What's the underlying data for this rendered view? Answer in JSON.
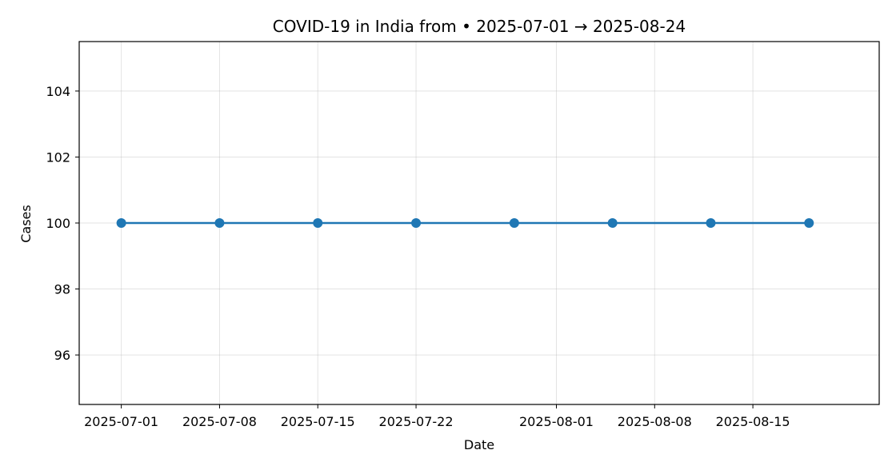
{
  "chart_data": {
    "type": "line",
    "title": "COVID-19 in India from • 2025-07-01 → 2025-08-24",
    "xlabel": "Date",
    "ylabel": "Cases",
    "x_type": "date",
    "x_ticks": [
      "2025-07-01",
      "2025-07-08",
      "2025-07-15",
      "2025-07-22",
      "2025-08-01",
      "2025-08-08",
      "2025-08-15"
    ],
    "y_ticks": [
      96,
      98,
      100,
      102,
      104
    ],
    "xlim": [
      "2025-06-28",
      "2025-08-24"
    ],
    "ylim": [
      94.5,
      105.5
    ],
    "grid": true,
    "series": [
      {
        "color": "#1f77b4",
        "x": [
          "2025-07-01",
          "2025-07-08",
          "2025-07-15",
          "2025-07-22",
          "2025-07-29",
          "2025-08-05",
          "2025-08-12",
          "2025-08-19"
        ],
        "y": [
          100,
          100,
          100,
          100,
          100,
          100,
          100,
          100
        ]
      }
    ]
  }
}
